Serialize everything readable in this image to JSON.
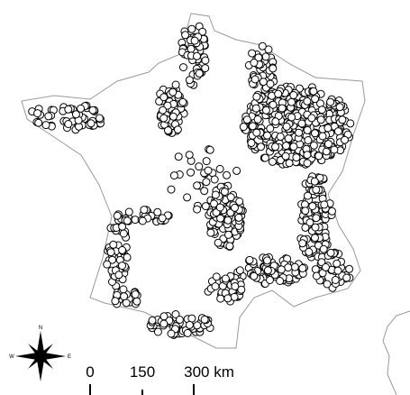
{
  "compass": {
    "north": "N",
    "west": "W",
    "east": "E"
  },
  "scale": {
    "labels": [
      "0",
      "150",
      "300 km"
    ]
  }
}
